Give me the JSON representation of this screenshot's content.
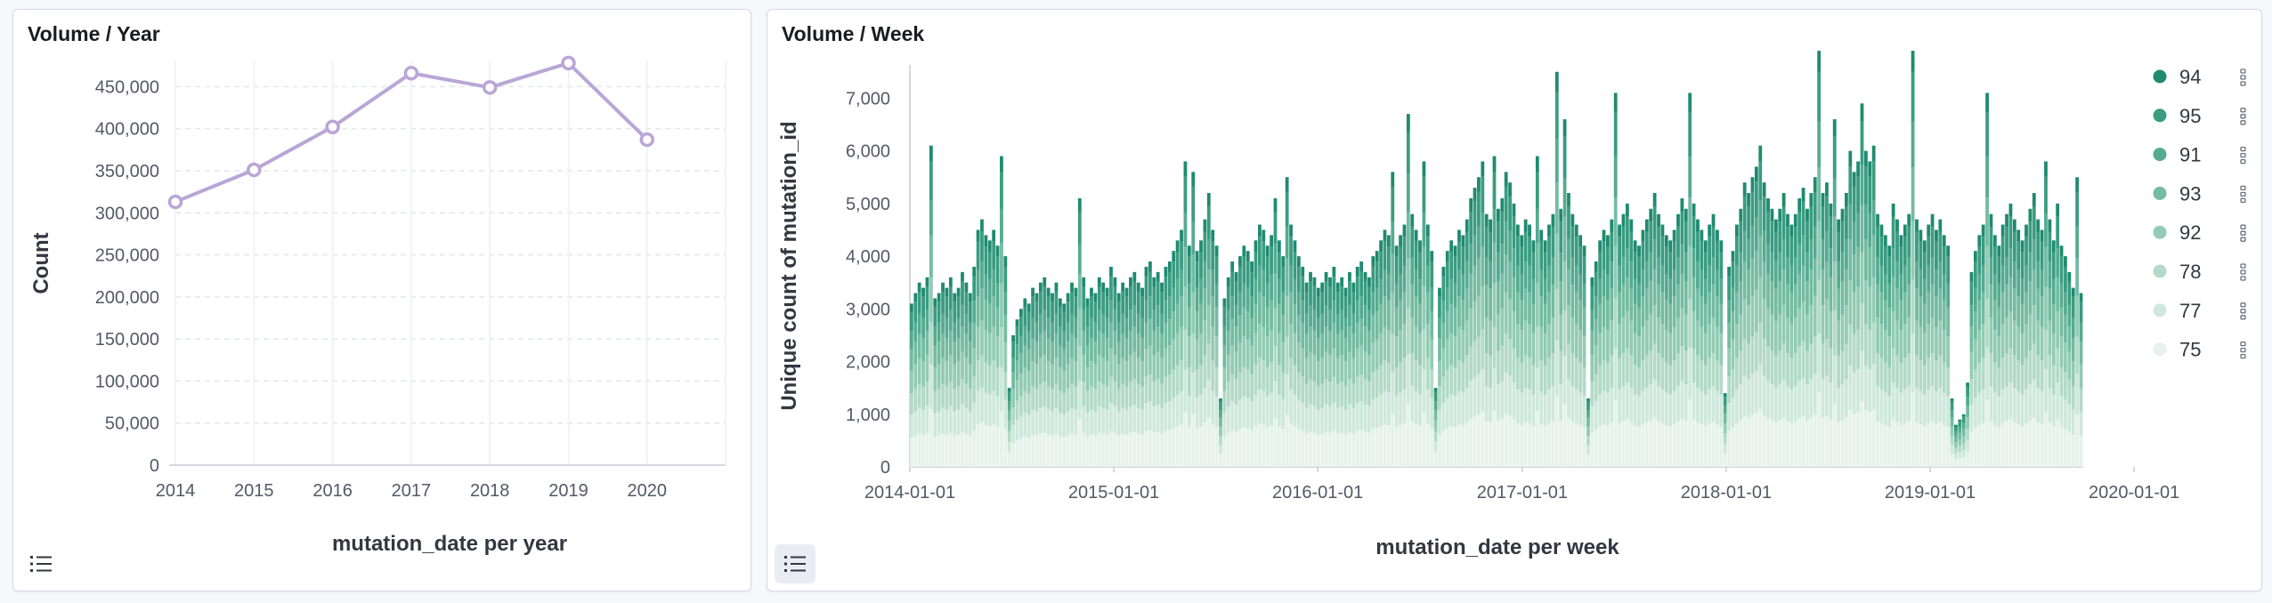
{
  "panels": {
    "year": {
      "title": "Volume / Year"
    },
    "week": {
      "title": "Volume / Week"
    }
  },
  "chart_data": [
    {
      "type": "line",
      "title": "Volume / Year",
      "x": [
        "2014",
        "2015",
        "2016",
        "2017",
        "2018",
        "2019",
        "2020"
      ],
      "values": [
        313000,
        351000,
        402000,
        466000,
        449000,
        478000,
        387000
      ],
      "xlabel": "mutation_date per year",
      "ylabel": "Count",
      "ylim": [
        0,
        480000
      ],
      "yticks": [
        "0",
        "50,000",
        "100,000",
        "150,000",
        "200,000",
        "250,000",
        "300,000",
        "350,000",
        "400,000",
        "450,000"
      ],
      "grid": true,
      "color": "#b9a6d6"
    },
    {
      "type": "bar",
      "stacked": true,
      "title": "Volume / Week",
      "xlabel": "mutation_date per week",
      "ylabel": "Unique count of mutation_id",
      "ylim": [
        0,
        7800
      ],
      "yticks": [
        "0",
        "1,000",
        "2,000",
        "3,000",
        "4,000",
        "5,000",
        "6,000",
        "7,000"
      ],
      "xticks": [
        "2014-01-01",
        "2015-01-01",
        "2016-01-01",
        "2017-01-01",
        "2018-01-01",
        "2019-01-01",
        "2020-01-01"
      ],
      "x_start": "2014-01-01",
      "legend_position": "right",
      "series_order": [
        "94",
        "95",
        "91",
        "93",
        "92",
        "78",
        "77",
        "75"
      ],
      "series_colors": [
        "#1f8a70",
        "#3a9c80",
        "#55ab90",
        "#74bba2",
        "#93cbb4",
        "#b3dac7",
        "#cfe8dc",
        "#e6f2ec"
      ],
      "series_share": [
        0.05,
        0.12,
        0.11,
        0.13,
        0.14,
        0.13,
        0.14,
        0.18
      ],
      "weekly_totals": [
        3100,
        3300,
        3500,
        3400,
        3600,
        6100,
        3200,
        3300,
        3500,
        3400,
        3600,
        3300,
        3400,
        3700,
        3500,
        3300,
        3800,
        4500,
        4700,
        4400,
        4300,
        4500,
        4200,
        5900,
        4000,
        1500,
        2500,
        2800,
        3000,
        3200,
        3100,
        3400,
        3300,
        3500,
        3600,
        3400,
        3300,
        3500,
        3200,
        3100,
        3300,
        3500,
        3400,
        5100,
        3600,
        3200,
        3400,
        3300,
        3600,
        3500,
        3400,
        3800,
        3600,
        3300,
        3500,
        3400,
        3600,
        3700,
        3500,
        3400,
        3800,
        3900,
        3600,
        3700,
        3500,
        3800,
        3900,
        4100,
        4300,
        4500,
        5800,
        4200,
        5600,
        4100,
        4300,
        4700,
        5200,
        4500,
        4200,
        1300,
        3200,
        3600,
        3900,
        3700,
        4000,
        4200,
        4100,
        3900,
        4300,
        4600,
        4500,
        4200,
        4400,
        5100,
        4300,
        4000,
        5500,
        4600,
        4300,
        4000,
        3800,
        3500,
        3700,
        3600,
        3400,
        3500,
        3700,
        3600,
        3800,
        3500,
        3600,
        3400,
        3700,
        3500,
        3800,
        3900,
        3700,
        3600,
        4000,
        4100,
        4300,
        4500,
        4400,
        5600,
        4200,
        4400,
        4600,
        6700,
        4800,
        4500,
        4300,
        5800,
        4600,
        4100,
        1500,
        3400,
        3800,
        4100,
        4300,
        4200,
        4500,
        4400,
        4700,
        5100,
        5300,
        5500,
        5800,
        4800,
        4700,
        5900,
        4900,
        5100,
        5600,
        5400,
        5000,
        4600,
        4400,
        4700,
        4600,
        4300,
        5900,
        4500,
        4300,
        4600,
        4800,
        7500,
        4900,
        6600,
        5200,
        4800,
        4600,
        4400,
        4200,
        1300,
        3600,
        3900,
        4300,
        4500,
        4400,
        4700,
        7100,
        4600,
        4800,
        5000,
        4700,
        4300,
        4200,
        4500,
        4700,
        4900,
        5200,
        4800,
        4600,
        4400,
        4300,
        4500,
        4800,
        5100,
        4900,
        7100,
        5000,
        4700,
        4500,
        4300,
        4600,
        4800,
        4500,
        4300,
        1400,
        3800,
        4100,
        4600,
        4900,
        5400,
        5200,
        5500,
        5700,
        6100,
        5400,
        5100,
        4900,
        4700,
        4900,
        5200,
        4800,
        4600,
        4800,
        5100,
        5300,
        4900,
        5200,
        5500,
        7900,
        5200,
        5400,
        5000,
        6600,
        4700,
        4900,
        5200,
        6000,
        5600,
        5800,
        6900,
        6000,
        5800,
        6100,
        4800,
        4600,
        4400,
        4200,
        5000,
        4700,
        4400,
        4600,
        4800,
        7900,
        4700,
        4500,
        4300,
        4600,
        4800,
        4500,
        4700,
        4400,
        4200,
        1300,
        800,
        900,
        1000,
        1600,
        3700,
        4100,
        4400,
        4600,
        7100,
        4800,
        4400,
        4200,
        4600,
        4800,
        5000,
        4700,
        4500,
        4300,
        4600,
        4900,
        5200,
        4700,
        4500,
        5800,
        4700,
        4300,
        5000,
        4200,
        4000,
        3700,
        3400,
        5500,
        3300
      ]
    }
  ]
}
